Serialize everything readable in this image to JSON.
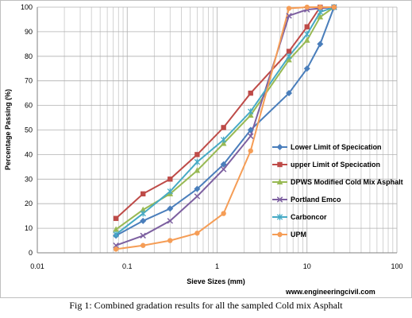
{
  "caption": "Fig 1: Combined gradation results for all the sampled Cold mix Asphalt",
  "credit": "www.engineeringcivil.com",
  "chart_data": {
    "type": "line",
    "xscale": "log",
    "xlim": [
      0.01,
      100
    ],
    "ylim": [
      0,
      100
    ],
    "xlabel": "Sieve Sizes (mm)",
    "ylabel": "Percentage Passing (%)",
    "x_ticks": [
      {
        "v": 0.01,
        "label": "0.01"
      },
      {
        "v": 0.1,
        "label": "0.1"
      },
      {
        "v": 1,
        "label": "1"
      },
      {
        "v": 10,
        "label": "10"
      },
      {
        "v": 100,
        "label": "100"
      }
    ],
    "y_ticks": [
      0,
      10,
      20,
      30,
      40,
      50,
      60,
      70,
      80,
      90,
      100
    ],
    "grid": true,
    "legend_position": "right",
    "series": [
      {
        "name": "Lower Limit of Specication",
        "color": "#4a7ebb",
        "marker": "diamond",
        "x": [
          0.075,
          0.15,
          0.3,
          0.6,
          1.18,
          2.36,
          6.3,
          10,
          14,
          20
        ],
        "y": [
          7,
          13,
          18,
          26,
          36,
          50,
          65,
          75,
          85,
          100
        ]
      },
      {
        "name": "upper Limit of Specication",
        "color": "#be4b48",
        "marker": "square",
        "x": [
          0.075,
          0.15,
          0.3,
          0.6,
          1.18,
          2.36,
          6.3,
          10,
          14,
          20
        ],
        "y": [
          14,
          24,
          30,
          40,
          51,
          65,
          82,
          92,
          100,
          100
        ]
      },
      {
        "name": "DPWS Modified Cold Mix Asphalt",
        "color": "#98b954",
        "marker": "triangle",
        "x": [
          0.075,
          0.15,
          0.3,
          0.6,
          1.18,
          2.36,
          6.3,
          10,
          14,
          20
        ],
        "y": [
          9.5,
          17.5,
          24,
          33.5,
          44.5,
          56,
          78.5,
          86.5,
          96,
          100
        ]
      },
      {
        "name": "Portland Emco",
        "color": "#7d60a0",
        "marker": "x",
        "x": [
          0.075,
          0.15,
          0.3,
          0.6,
          1.18,
          2.36,
          6.3,
          10,
          14,
          20
        ],
        "y": [
          3,
          7,
          13,
          23,
          34,
          47.5,
          96.5,
          99,
          99.5,
          100
        ]
      },
      {
        "name": "Carboncor",
        "color": "#46aac5",
        "marker": "star",
        "x": [
          0.075,
          0.15,
          0.3,
          0.6,
          1.18,
          2.36,
          6.3,
          10,
          14,
          20
        ],
        "y": [
          7.5,
          16,
          25,
          37,
          46,
          57.5,
          80,
          89,
          98,
          100
        ]
      },
      {
        "name": "UPM",
        "color": "#f59d56",
        "marker": "circle",
        "x": [
          0.075,
          0.15,
          0.3,
          0.6,
          1.18,
          2.36,
          6.3,
          10,
          14,
          20
        ],
        "y": [
          1.5,
          3,
          5,
          8,
          16,
          41.5,
          99.5,
          100,
          100,
          100
        ]
      }
    ]
  }
}
